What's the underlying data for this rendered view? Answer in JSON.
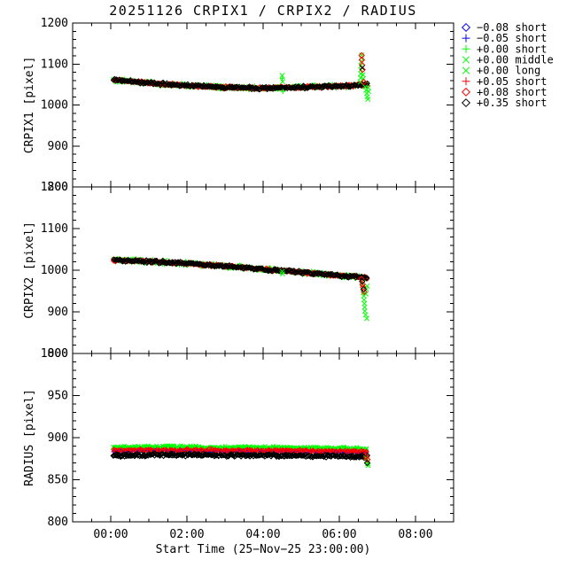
{
  "chart_data": {
    "type": "scatter",
    "title": "20251126 CRPIX1 / CRPIX2 / RADIUS",
    "xlabel": "Start Time (25−Nov−25 23:00:00)",
    "x_axis": {
      "range_hours": [
        -1,
        9
      ],
      "minor_step_h": 0.5,
      "ticks": [
        {
          "h": 0,
          "label": "00:00"
        },
        {
          "h": 2,
          "label": "02:00"
        },
        {
          "h": 4,
          "label": "04:00"
        },
        {
          "h": 6,
          "label": "06:00"
        },
        {
          "h": 8,
          "label": "08:00"
        }
      ]
    },
    "data_h_range": [
      0.07,
      6.74
    ],
    "legend": {
      "position": "right-top",
      "entries": [
        {
          "symbol": "diamond",
          "color": "#0000ff",
          "label": "−0.08 short"
        },
        {
          "symbol": "plus",
          "color": "#0000ff",
          "label": "−0.05 short"
        },
        {
          "symbol": "plus",
          "color": "#00ff00",
          "label": "+0.00 short"
        },
        {
          "symbol": "x",
          "color": "#00ff00",
          "label": "+0.00 middle"
        },
        {
          "symbol": "x",
          "color": "#00ff00",
          "label": "+0.00 long"
        },
        {
          "symbol": "plus",
          "color": "#ff0000",
          "label": "+0.05 short"
        },
        {
          "symbol": "diamond",
          "color": "#ff0000",
          "label": "+0.08 short"
        },
        {
          "symbol": "diamond",
          "color": "#000000",
          "label": "+0.35 short"
        }
      ]
    },
    "panels": [
      {
        "name": "CRPIX1",
        "ylabel": "CRPIX1 [pixel]",
        "ylim": [
          800,
          1200
        ],
        "yticks": [
          800,
          900,
          1000,
          1100,
          1200
        ],
        "y_minor_step": 20,
        "grid": false,
        "trend": [
          [
            0.07,
            1062
          ],
          [
            0.5,
            1058
          ],
          [
            1.0,
            1054
          ],
          [
            1.5,
            1050
          ],
          [
            2.0,
            1047
          ],
          [
            2.5,
            1045
          ],
          [
            3.0,
            1043
          ],
          [
            3.5,
            1042
          ],
          [
            4.0,
            1041
          ],
          [
            4.5,
            1043
          ],
          [
            5.0,
            1043
          ],
          [
            5.5,
            1045
          ],
          [
            6.0,
            1046
          ],
          [
            6.3,
            1047
          ],
          [
            6.55,
            1049
          ],
          [
            6.74,
            1050
          ]
        ],
        "layers": [
          {
            "color": "#00ff00",
            "marker": "plus",
            "offset": 0,
            "spread": 6.5,
            "step": 0.02
          },
          {
            "color": "#00ff00",
            "marker": "x",
            "offset": 0,
            "spread": 5.5,
            "step": 0.05
          },
          {
            "color": "#0000ff",
            "marker": "plus",
            "offset": 0,
            "spread": 3.0,
            "step": 0.15
          },
          {
            "color": "#ff0000",
            "marker": "plus",
            "offset": 0,
            "spread": 4.2,
            "step": 0.018
          },
          {
            "color": "#ff0000",
            "marker": "diamond",
            "offset": 0,
            "spread": 4.0,
            "step": 0.06
          },
          {
            "color": "#000000",
            "marker": "diamond",
            "offset": 0,
            "spread": 4.2,
            "step": 0.026
          }
        ],
        "outliers": [
          [
            4.5,
            1072,
            "#00ff00",
            "x"
          ],
          [
            4.5,
            1065,
            "#00ff00",
            "plus"
          ],
          [
            4.51,
            1057,
            "#00ff00",
            "x"
          ],
          [
            4.52,
            1033,
            "#00ff00",
            "plus"
          ],
          [
            6.55,
            1056,
            "#00ff00",
            "x"
          ],
          [
            6.555,
            1066,
            "#00ff00",
            "x"
          ],
          [
            6.56,
            1076,
            "#00ff00",
            "x"
          ],
          [
            6.565,
            1086,
            "#00ff00",
            "x"
          ],
          [
            6.57,
            1096,
            "#00ff00",
            "x"
          ],
          [
            6.575,
            1106,
            "#00ff00",
            "x"
          ],
          [
            6.58,
            1115,
            "#00ff00",
            "x"
          ],
          [
            6.585,
            1122,
            "#00ff00",
            "x"
          ],
          [
            6.585,
            1121,
            "#ff0000",
            "diamond"
          ],
          [
            6.59,
            1110,
            "#ff0000",
            "diamond"
          ],
          [
            6.6,
            1097,
            "#ff0000",
            "diamond"
          ],
          [
            6.61,
            1086,
            "#ff0000",
            "diamond"
          ],
          [
            6.6,
            1091,
            "#000000",
            "x"
          ],
          [
            6.62,
            1074,
            "#00ff00",
            "x"
          ],
          [
            6.63,
            1064,
            "#00ff00",
            "x"
          ],
          [
            6.645,
            1056,
            "#ff0000",
            "diamond"
          ],
          [
            6.68,
            1044,
            "#00ff00",
            "x"
          ],
          [
            6.7,
            1036,
            "#00ff00",
            "x"
          ],
          [
            6.72,
            1028,
            "#00ff00",
            "x"
          ],
          [
            6.735,
            1020,
            "#00ff00",
            "x"
          ],
          [
            6.75,
            1014,
            "#00ff00",
            "x"
          ],
          [
            6.76,
            1042,
            "#00ff00",
            "x"
          ],
          [
            6.77,
            1033,
            "#00ff00",
            "x"
          ]
        ]
      },
      {
        "name": "CRPIX2",
        "ylabel": "CRPIX2 [pixel]",
        "ylim": [
          800,
          1200
        ],
        "yticks": [
          800,
          900,
          1000,
          1100,
          1200
        ],
        "y_minor_step": 20,
        "grid": false,
        "trend": [
          [
            0.07,
            1024
          ],
          [
            0.5,
            1023
          ],
          [
            1.0,
            1021
          ],
          [
            1.5,
            1019
          ],
          [
            2.0,
            1016
          ],
          [
            2.5,
            1013
          ],
          [
            3.0,
            1010
          ],
          [
            3.5,
            1006
          ],
          [
            4.0,
            1002
          ],
          [
            4.5,
            999
          ],
          [
            5.0,
            995
          ],
          [
            5.5,
            991
          ],
          [
            6.0,
            987
          ],
          [
            6.5,
            984
          ],
          [
            6.74,
            982
          ]
        ],
        "layers": [
          {
            "color": "#00ff00",
            "marker": "plus",
            "offset": 0,
            "spread": 6.5,
            "step": 0.02
          },
          {
            "color": "#00ff00",
            "marker": "x",
            "offset": 0,
            "spread": 5.5,
            "step": 0.05
          },
          {
            "color": "#0000ff",
            "marker": "plus",
            "offset": 0,
            "spread": 3.0,
            "step": 0.15
          },
          {
            "color": "#ff0000",
            "marker": "plus",
            "offset": 0,
            "spread": 4.2,
            "step": 0.018
          },
          {
            "color": "#ff0000",
            "marker": "diamond",
            "offset": 0,
            "spread": 4.0,
            "step": 0.06
          },
          {
            "color": "#000000",
            "marker": "diamond",
            "offset": 0,
            "spread": 4.2,
            "step": 0.026
          }
        ],
        "outliers": [
          [
            4.5,
            997,
            "#00ff00",
            "x"
          ],
          [
            4.51,
            991,
            "#00ff00",
            "x"
          ],
          [
            6.58,
            979,
            "#ff0000",
            "diamond"
          ],
          [
            6.6,
            973,
            "#000000",
            "diamond"
          ],
          [
            6.61,
            966,
            "#ff0000",
            "diamond"
          ],
          [
            6.625,
            959,
            "#ff0000",
            "diamond"
          ],
          [
            6.64,
            954,
            "#000000",
            "diamond"
          ],
          [
            6.65,
            948,
            "#ff0000",
            "diamond"
          ],
          [
            6.6,
            968,
            "#00ff00",
            "x"
          ],
          [
            6.615,
            958,
            "#00ff00",
            "x"
          ],
          [
            6.63,
            947,
            "#00ff00",
            "x"
          ],
          [
            6.64,
            938,
            "#00ff00",
            "x"
          ],
          [
            6.65,
            929,
            "#00ff00",
            "x"
          ],
          [
            6.66,
            920,
            "#00ff00",
            "x"
          ],
          [
            6.665,
            911,
            "#00ff00",
            "x"
          ],
          [
            6.67,
            902,
            "#00ff00",
            "x"
          ],
          [
            6.69,
            893,
            "#00ff00",
            "x"
          ],
          [
            6.72,
            884,
            "#00ff00",
            "x"
          ],
          [
            6.7,
            943,
            "#00ff00",
            "x"
          ],
          [
            6.71,
            955,
            "#00ff00",
            "x"
          ],
          [
            6.73,
            962,
            "#00ff00",
            "x"
          ]
        ]
      },
      {
        "name": "RADIUS",
        "ylabel": "RADIUS [pixel]",
        "ylim": [
          800,
          1000
        ],
        "yticks": [
          800,
          850,
          900,
          950,
          1000
        ],
        "y_minor_step": 10,
        "grid": false,
        "trend": [
          [
            0.07,
            883
          ],
          [
            1.0,
            883.5
          ],
          [
            2.0,
            883.5
          ],
          [
            3.0,
            883
          ],
          [
            4.0,
            883
          ],
          [
            5.0,
            882.5
          ],
          [
            6.0,
            882
          ],
          [
            6.74,
            881
          ]
        ],
        "layers": [
          {
            "color": "#00ff00",
            "marker": "x",
            "offset": 5.0,
            "spread": 2.5,
            "step": 0.02
          },
          {
            "color": "#00ff00",
            "marker": "plus",
            "offset": 4.5,
            "spread": 2.2,
            "step": 0.05
          },
          {
            "color": "#ff0000",
            "marker": "plus",
            "offset": 1.5,
            "spread": 2.2,
            "step": 0.018
          },
          {
            "color": "#0000ff",
            "marker": "plus",
            "offset": 0.5,
            "spread": 1.5,
            "step": 0.1
          },
          {
            "color": "#ff0000",
            "marker": "diamond",
            "offset": 1.5,
            "spread": 2.0,
            "step": 0.07
          },
          {
            "color": "#000000",
            "marker": "diamond",
            "offset": -4.0,
            "spread": 2.2,
            "step": 0.022
          }
        ],
        "outliers": [
          [
            6.7,
            876,
            "#00ff00",
            "x"
          ],
          [
            6.72,
            872,
            "#00ff00",
            "x"
          ],
          [
            6.745,
            869,
            "#00ff00",
            "x"
          ],
          [
            6.76,
            867,
            "#00ff00",
            "x"
          ],
          [
            6.71,
            877,
            "#ff0000",
            "diamond"
          ],
          [
            6.74,
            874,
            "#ff0000",
            "diamond"
          ],
          [
            6.73,
            870,
            "#000000",
            "diamond"
          ]
        ]
      }
    ]
  }
}
